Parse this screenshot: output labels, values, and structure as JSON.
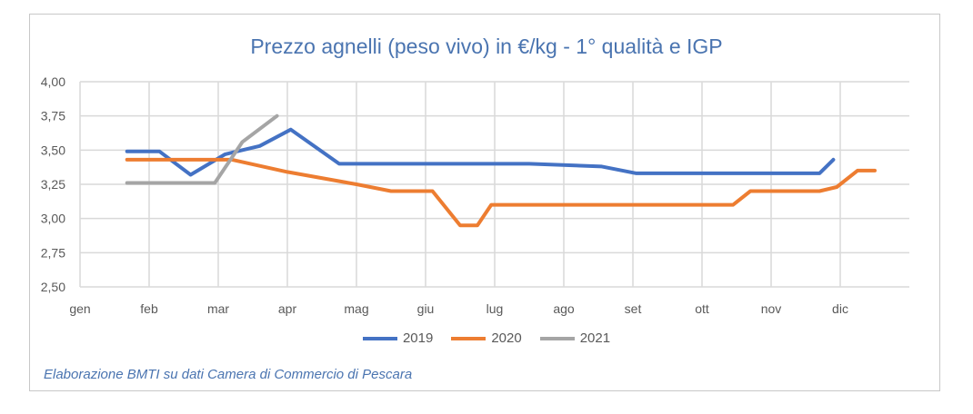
{
  "chart_data": {
    "type": "line",
    "title": "Prezzo agnelli (peso vivo) in €/kg - 1° qualità e IGP",
    "x_ticks": [
      "gen",
      "feb",
      "mar",
      "apr",
      "mag",
      "giu",
      "lug",
      "ago",
      "set",
      "ott",
      "nov",
      "dic"
    ],
    "y_ticks": [
      "4,00",
      "3,75",
      "3,50",
      "3,25",
      "3,00",
      "2,75",
      "2,50"
    ],
    "ylim": [
      2.5,
      4.0
    ],
    "xlim": [
      1,
      13
    ],
    "grid": true,
    "legend_position": "bottom",
    "series": [
      {
        "name": "2019",
        "color": "#4472c4",
        "points": [
          [
            1.68,
            3.49
          ],
          [
            2.15,
            3.49
          ],
          [
            2.6,
            3.32
          ],
          [
            3.1,
            3.47
          ],
          [
            3.6,
            3.53
          ],
          [
            4.05,
            3.65
          ],
          [
            4.75,
            3.4
          ],
          [
            5.5,
            3.4
          ],
          [
            6.5,
            3.4
          ],
          [
            7.5,
            3.4
          ],
          [
            8.55,
            3.38
          ],
          [
            9.05,
            3.33
          ],
          [
            10.0,
            3.33
          ],
          [
            11.0,
            3.33
          ],
          [
            11.7,
            3.33
          ],
          [
            11.9,
            3.43
          ]
        ]
      },
      {
        "name": "2020",
        "color": "#ed7d31",
        "points": [
          [
            1.68,
            3.43
          ],
          [
            2.5,
            3.43
          ],
          [
            3.2,
            3.43
          ],
          [
            4.0,
            3.34
          ],
          [
            5.0,
            3.25
          ],
          [
            5.5,
            3.2
          ],
          [
            6.1,
            3.2
          ],
          [
            6.5,
            2.95
          ],
          [
            6.75,
            2.95
          ],
          [
            6.95,
            3.1
          ],
          [
            8.0,
            3.1
          ],
          [
            9.0,
            3.1
          ],
          [
            10.0,
            3.1
          ],
          [
            10.45,
            3.1
          ],
          [
            10.7,
            3.2
          ],
          [
            11.7,
            3.2
          ],
          [
            11.95,
            3.23
          ],
          [
            12.25,
            3.35
          ],
          [
            12.5,
            3.35
          ]
        ]
      },
      {
        "name": "2021",
        "color": "#a5a5a5",
        "points": [
          [
            1.68,
            3.26
          ],
          [
            2.5,
            3.26
          ],
          [
            2.95,
            3.26
          ],
          [
            3.35,
            3.56
          ],
          [
            3.85,
            3.75
          ]
        ]
      }
    ]
  },
  "source_note": "Elaborazione BMTI su dati Camera di Commercio di Pescara"
}
